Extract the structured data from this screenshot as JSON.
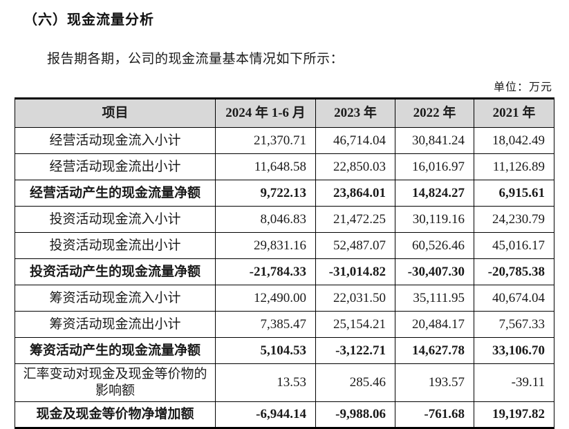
{
  "page": {
    "title": "（六）现金流量分析",
    "intro": "报告期各期，公司的现金流量基本情况如下所示：",
    "unit_label": "单位：万元"
  },
  "colors": {
    "header_bg": "#d8d8d8",
    "border": "#000000",
    "text": "#1a1a1a",
    "background": "#ffffff"
  },
  "table": {
    "columns": [
      "项目",
      "2024 年 1-6 月",
      "2023 年",
      "2022 年",
      "2021 年"
    ],
    "rows": [
      {
        "label": "经营活动现金流入小计",
        "bold": false,
        "values": [
          "21,370.71",
          "46,714.04",
          "30,841.24",
          "18,042.49"
        ]
      },
      {
        "label": "经营活动现金流出小计",
        "bold": false,
        "values": [
          "11,648.58",
          "22,850.03",
          "16,016.97",
          "11,126.89"
        ]
      },
      {
        "label": "经营活动产生的现金流量净额",
        "bold": true,
        "values": [
          "9,722.13",
          "23,864.01",
          "14,824.27",
          "6,915.61"
        ]
      },
      {
        "label": "投资活动现金流入小计",
        "bold": false,
        "values": [
          "8,046.83",
          "21,472.25",
          "30,119.16",
          "24,230.79"
        ]
      },
      {
        "label": "投资活动现金流出小计",
        "bold": false,
        "values": [
          "29,831.16",
          "52,487.07",
          "60,526.46",
          "45,016.17"
        ]
      },
      {
        "label": "投资活动产生的现金流量净额",
        "bold": true,
        "values": [
          "-21,784.33",
          "-31,014.82",
          "-30,407.30",
          "-20,785.38"
        ]
      },
      {
        "label": "筹资活动现金流入小计",
        "bold": false,
        "values": [
          "12,490.00",
          "22,031.50",
          "35,111.95",
          "40,674.04"
        ]
      },
      {
        "label": "筹资活动现金流出小计",
        "bold": false,
        "values": [
          "7,385.47",
          "25,154.21",
          "20,484.17",
          "7,567.33"
        ]
      },
      {
        "label": "筹资活动产生的现金流量净额",
        "bold": true,
        "values": [
          "5,104.53",
          "-3,122.71",
          "14,627.78",
          "33,106.70"
        ]
      },
      {
        "label": "汇率变动对现金及现金等价物的影响额",
        "bold": false,
        "values": [
          "13.53",
          "285.46",
          "193.57",
          "-39.11"
        ]
      },
      {
        "label": "现金及现金等价物净增加额",
        "bold": true,
        "values": [
          "-6,944.14",
          "-9,988.06",
          "-761.68",
          "19,197.82"
        ]
      }
    ]
  }
}
